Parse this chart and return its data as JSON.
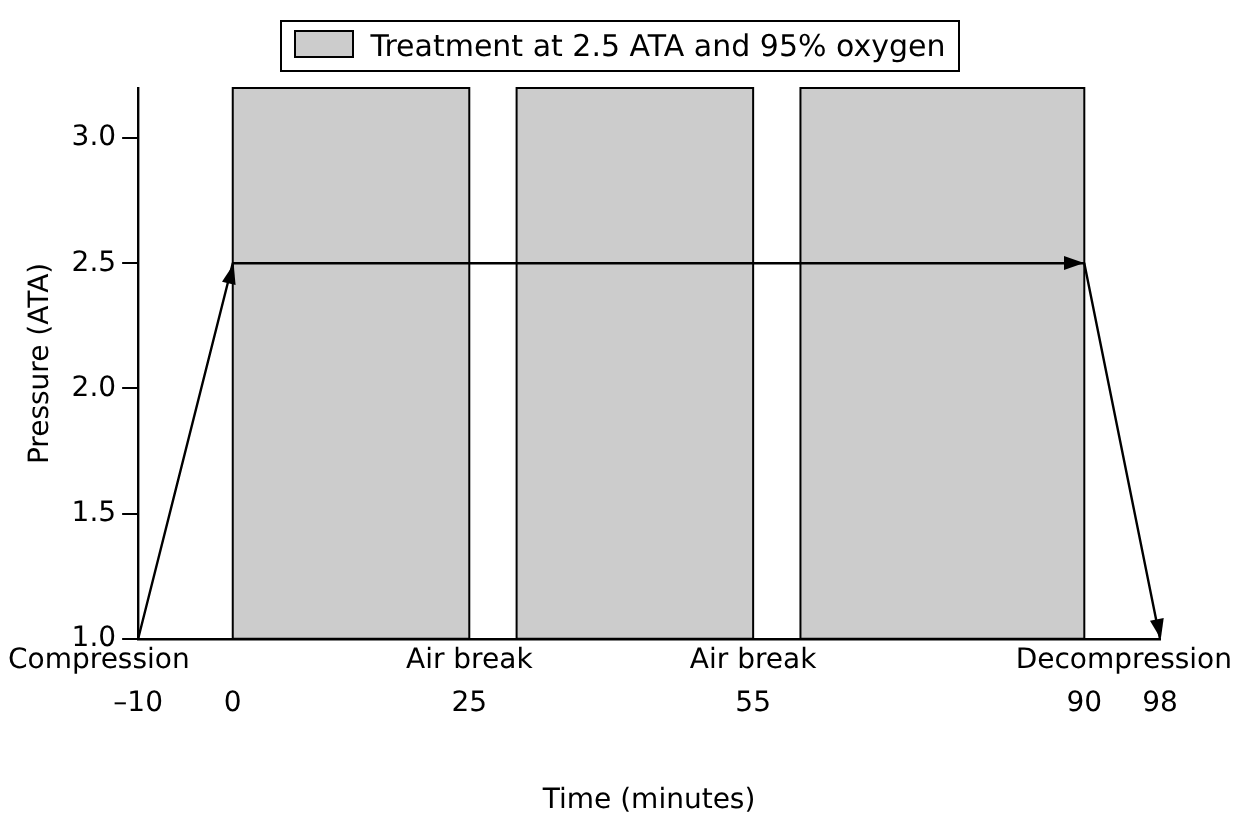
{
  "chart_data": {
    "type": "line",
    "xlabel": "Time (minutes)",
    "ylabel": "Pressure (ATA)",
    "x": [
      -10,
      0,
      90,
      98
    ],
    "series": [
      {
        "color": "#000000",
        "values": [
          1.0,
          2.5,
          2.5,
          1.0
        ]
      }
    ],
    "xlim": [
      -10,
      98
    ],
    "xticks": [
      {
        "value": -10,
        "label": "–10"
      },
      0,
      25,
      55,
      90,
      98
    ],
    "ylim": [
      1.0,
      3.2
    ],
    "yticks": [
      {
        "value": 1,
        "label": "1.0"
      },
      1.5,
      {
        "value": 2,
        "label": "2.0"
      },
      2.5,
      {
        "value": 3,
        "label": "3.0"
      }
    ],
    "bands": [
      {
        "axis": "x",
        "from": 0,
        "to": 25,
        "label": "Treatment at 2.5 ATA and 95% oxygen",
        "color": "#cccccc"
      },
      {
        "axis": "x",
        "from": 30,
        "to": 55,
        "color": "#cccccc"
      },
      {
        "axis": "x",
        "from": 60,
        "to": 90,
        "color": "#cccccc"
      }
    ],
    "annotations": [
      "Compression",
      {
        "text": "Air break",
        "x": 25,
        "y": 1.0
      },
      {
        "text": "Air break",
        "x": 55,
        "y": 1.0
      },
      "Decompression"
    ],
    "legend": "top",
    "marker": "none",
    "line_style": "solid",
    "grid": false
  }
}
